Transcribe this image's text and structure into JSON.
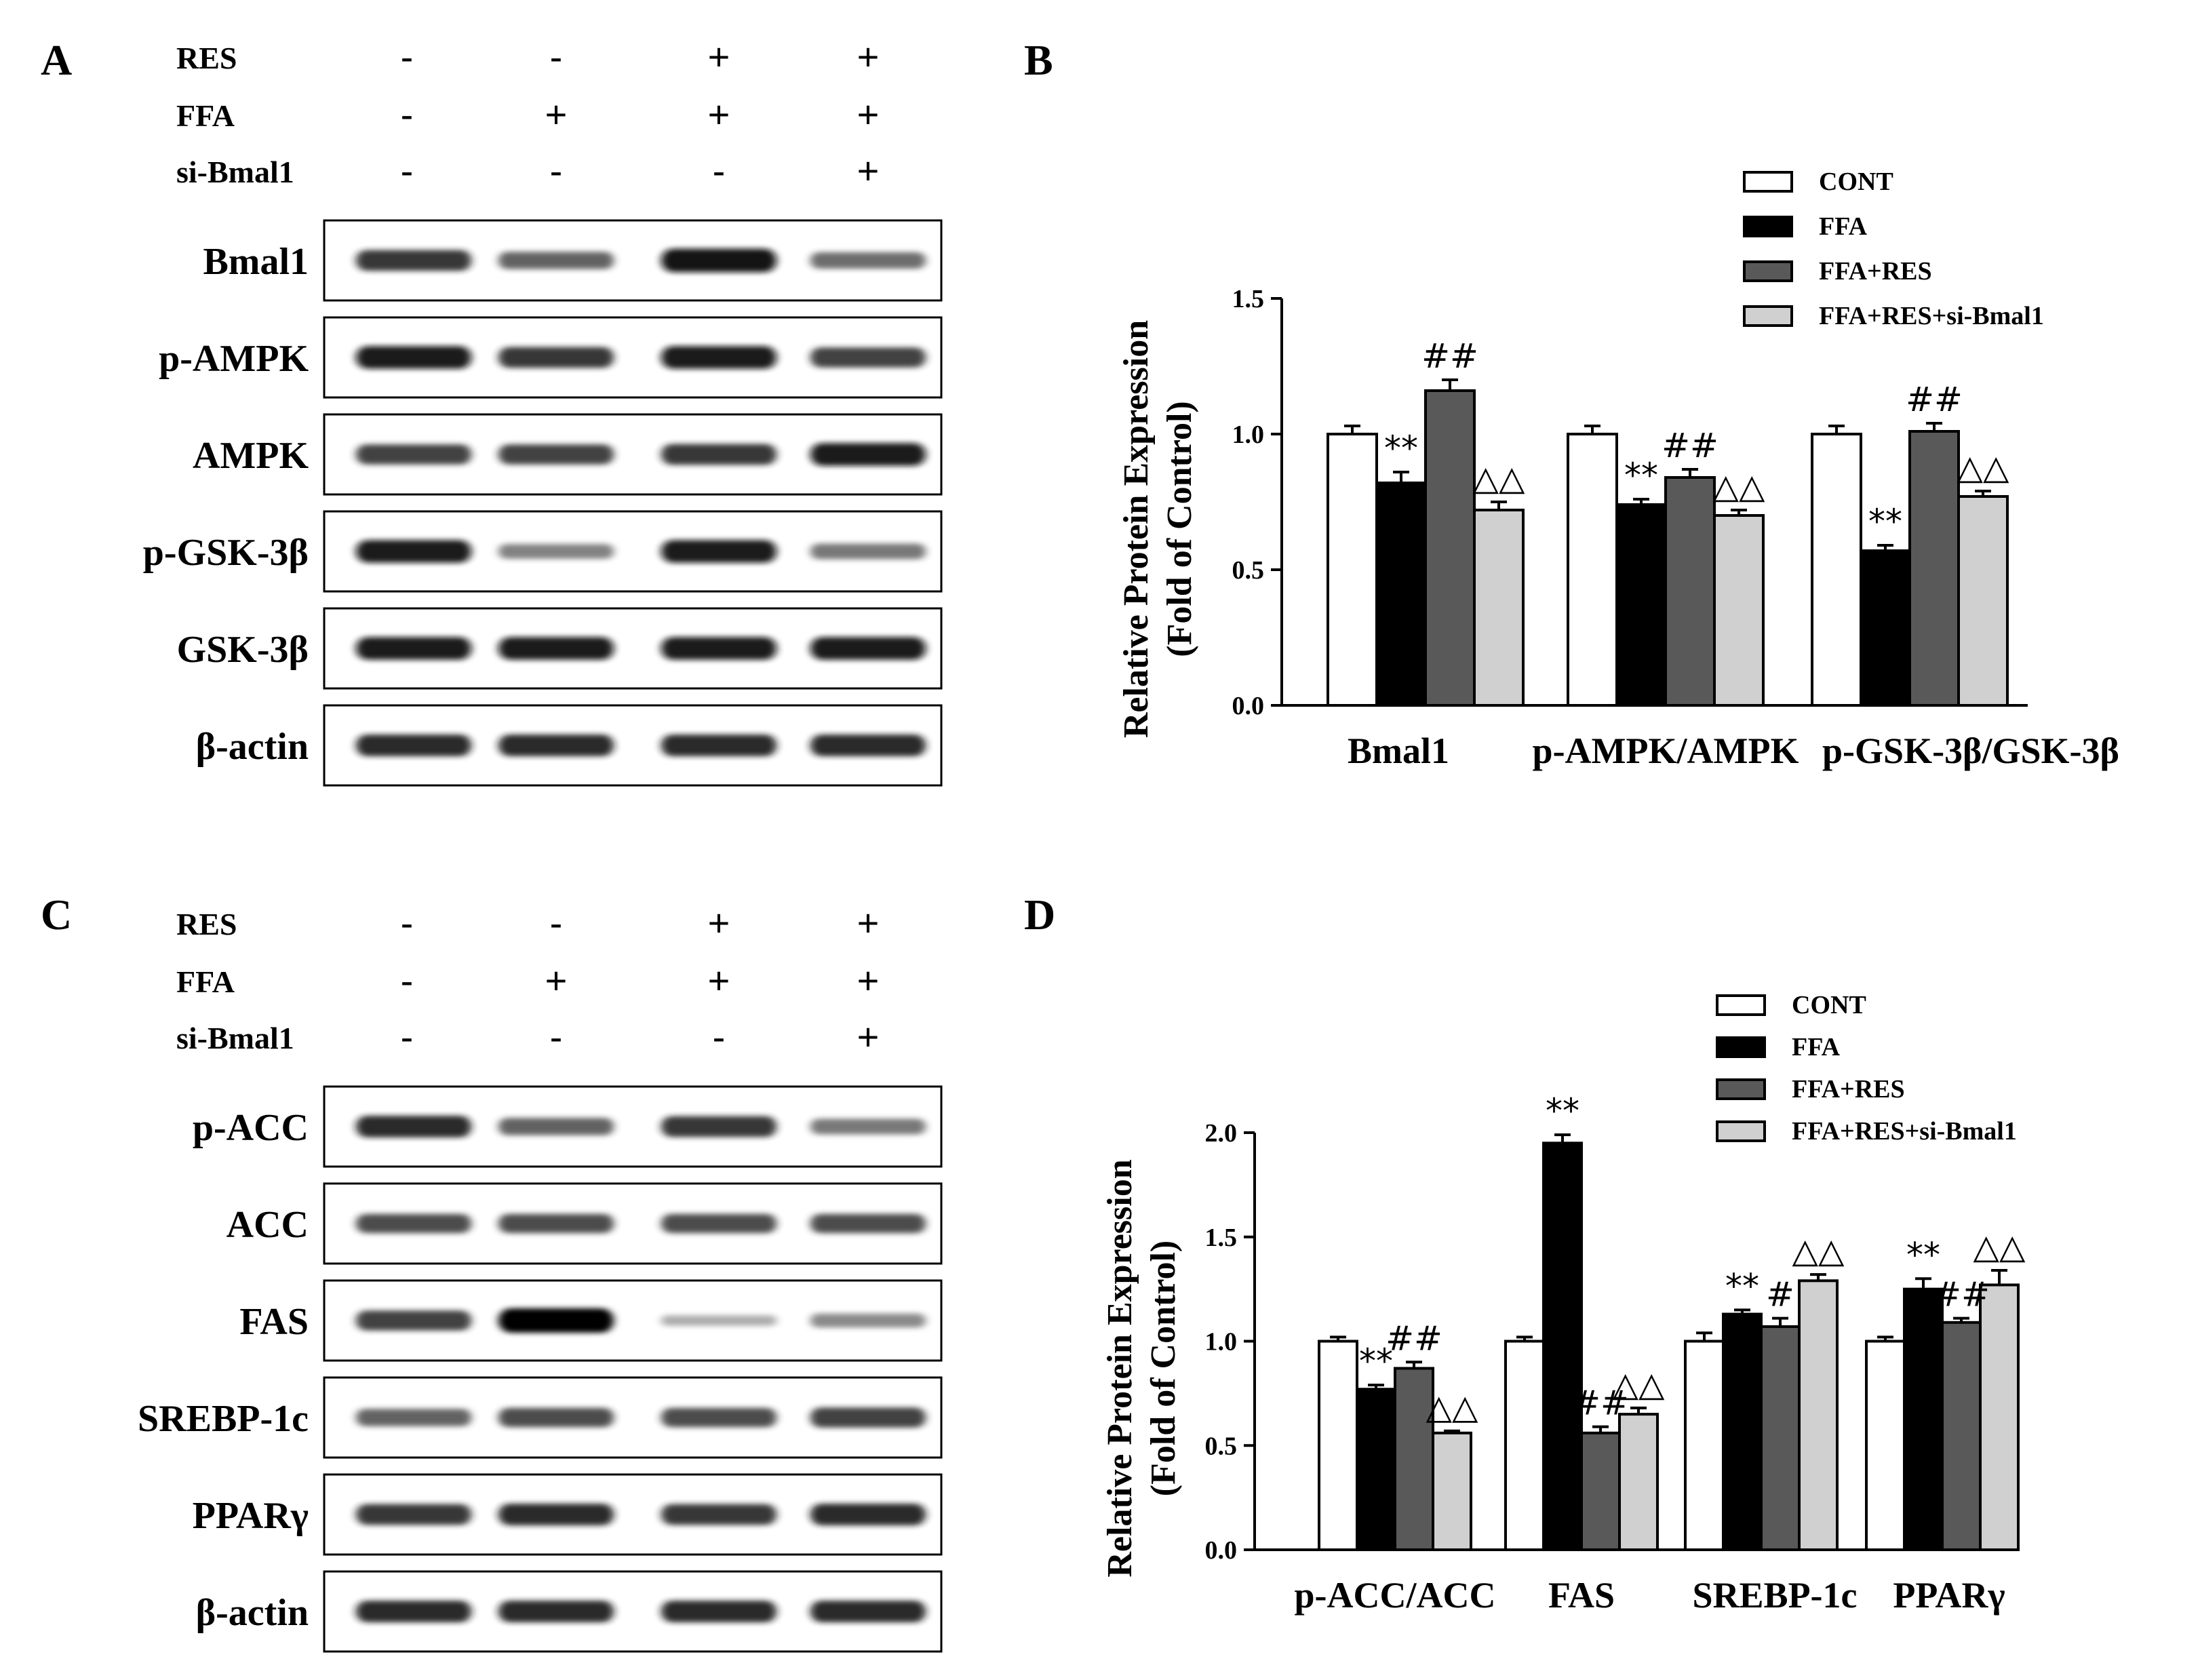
{
  "panels": {
    "A": {
      "label": "A",
      "conditions": [
        {
          "name": "RES",
          "signs": [
            "-",
            "-",
            "+",
            "+"
          ]
        },
        {
          "name": "FFA",
          "signs": [
            "-",
            "+",
            "+",
            "+"
          ]
        },
        {
          "name": "si-Bmal1",
          "signs": [
            "-",
            "-",
            "-",
            "+"
          ]
        }
      ],
      "blots": [
        {
          "label": "Bmal1",
          "intensity": [
            0.8,
            0.6,
            0.95,
            0.55
          ]
        },
        {
          "label": "p-AMPK",
          "intensity": [
            0.9,
            0.8,
            0.9,
            0.75
          ]
        },
        {
          "label": "AMPK",
          "intensity": [
            0.75,
            0.75,
            0.8,
            0.9
          ]
        },
        {
          "label": "p-GSK-3β",
          "intensity": [
            0.9,
            0.45,
            0.9,
            0.5
          ]
        },
        {
          "label": "GSK-3β",
          "intensity": [
            0.9,
            0.9,
            0.9,
            0.9
          ]
        },
        {
          "label": "β-actin",
          "intensity": [
            0.85,
            0.85,
            0.85,
            0.85
          ]
        }
      ]
    },
    "B": {
      "label": "B"
    },
    "C": {
      "label": "C",
      "conditions": [
        {
          "name": "RES",
          "signs": [
            "-",
            "-",
            "+",
            "+"
          ]
        },
        {
          "name": "FFA",
          "signs": [
            "-",
            "+",
            "+",
            "+"
          ]
        },
        {
          "name": "si-Bmal1",
          "signs": [
            "-",
            "-",
            "-",
            "+"
          ]
        }
      ],
      "blots": [
        {
          "label": "p-ACC",
          "intensity": [
            0.85,
            0.6,
            0.8,
            0.5
          ]
        },
        {
          "label": "ACC",
          "intensity": [
            0.7,
            0.7,
            0.7,
            0.7
          ]
        },
        {
          "label": "FAS",
          "intensity": [
            0.75,
            1.0,
            0.2,
            0.4
          ]
        },
        {
          "label": "SREBP-1c",
          "intensity": [
            0.6,
            0.7,
            0.7,
            0.75
          ]
        },
        {
          "label": "PPARγ",
          "intensity": [
            0.8,
            0.85,
            0.8,
            0.85
          ]
        },
        {
          "label": "β-actin",
          "intensity": [
            0.85,
            0.85,
            0.85,
            0.85
          ]
        }
      ]
    },
    "D": {
      "label": "D"
    }
  },
  "legend_entries": [
    "CONT",
    "FFA",
    "FFA+RES",
    "FFA+RES+si-Bmal1"
  ],
  "series_colors": [
    "#ffffff",
    "#000000",
    "#595959",
    "#d0d0d0"
  ],
  "chart_data": [
    {
      "panel": "B",
      "type": "bar",
      "ylabel": [
        "Relative Protein Expression",
        "(Fold of  Control)"
      ],
      "ylim": [
        0,
        1.5
      ],
      "yticks": [
        "0.0",
        "0.5",
        "1.0",
        "1.5"
      ],
      "categories": [
        "Bmal1",
        "p-AMPK/AMPK",
        "p-GSK-3β/GSK-3β"
      ],
      "series": [
        {
          "name": "CONT",
          "values": [
            1.0,
            1.0,
            1.0
          ],
          "errors": [
            0.03,
            0.03,
            0.03
          ]
        },
        {
          "name": "FFA",
          "values": [
            0.82,
            0.74,
            0.57
          ],
          "errors": [
            0.04,
            0.02,
            0.02
          ]
        },
        {
          "name": "FFA+RES",
          "values": [
            1.16,
            0.84,
            1.01
          ],
          "errors": [
            0.04,
            0.03,
            0.03
          ]
        },
        {
          "name": "FFA+RES+si-Bmal1",
          "values": [
            0.72,
            0.7,
            0.77
          ],
          "errors": [
            0.03,
            0.02,
            0.02
          ]
        }
      ],
      "annotations": [
        {
          "category": 0,
          "series": 1,
          "text": "**"
        },
        {
          "category": 0,
          "series": 2,
          "text": "##"
        },
        {
          "category": 0,
          "series": 3,
          "text": "△△"
        },
        {
          "category": 1,
          "series": 1,
          "text": "**"
        },
        {
          "category": 1,
          "series": 2,
          "text": "##"
        },
        {
          "category": 1,
          "series": 3,
          "text": "△△"
        },
        {
          "category": 2,
          "series": 1,
          "text": "**"
        },
        {
          "category": 2,
          "series": 2,
          "text": "##"
        },
        {
          "category": 2,
          "series": 3,
          "text": "△△"
        }
      ]
    },
    {
      "panel": "D",
      "type": "bar",
      "ylabel": [
        "Relative Protein Expression",
        "(Fold of  Control)"
      ],
      "ylim": [
        0,
        2.0
      ],
      "yticks": [
        "0.0",
        "0.5",
        "1.0",
        "1.5",
        "2.0"
      ],
      "categories": [
        "p-ACC/ACC",
        "FAS",
        "SREBP-1c",
        "PPARγ"
      ],
      "series": [
        {
          "name": "CONT",
          "values": [
            1.0,
            1.0,
            1.0,
            1.0
          ],
          "errors": [
            0.02,
            0.02,
            0.04,
            0.02
          ]
        },
        {
          "name": "FFA",
          "values": [
            0.77,
            1.95,
            1.13,
            1.25
          ],
          "errors": [
            0.02,
            0.04,
            0.02,
            0.05
          ]
        },
        {
          "name": "FFA+RES",
          "values": [
            0.87,
            0.56,
            1.07,
            1.09
          ],
          "errors": [
            0.03,
            0.03,
            0.04,
            0.02
          ]
        },
        {
          "name": "FFA+RES+si-Bmal1",
          "values": [
            0.56,
            0.65,
            1.29,
            1.27
          ],
          "errors": [
            0.01,
            0.03,
            0.03,
            0.07
          ]
        }
      ],
      "annotations": [
        {
          "category": 0,
          "series": 1,
          "text": "**"
        },
        {
          "category": 0,
          "series": 2,
          "text": "##"
        },
        {
          "category": 0,
          "series": 3,
          "text": "△△"
        },
        {
          "category": 1,
          "series": 1,
          "text": "**"
        },
        {
          "category": 1,
          "series": 2,
          "text": "##"
        },
        {
          "category": 1,
          "series": 3,
          "text": "△△"
        },
        {
          "category": 2,
          "series": 1,
          "text": "**"
        },
        {
          "category": 2,
          "series": 2,
          "text": "#"
        },
        {
          "category": 2,
          "series": 3,
          "text": "△△"
        },
        {
          "category": 3,
          "series": 1,
          "text": "**"
        },
        {
          "category": 3,
          "series": 2,
          "text": "##"
        },
        {
          "category": 3,
          "series": 3,
          "text": "△△"
        }
      ]
    }
  ]
}
